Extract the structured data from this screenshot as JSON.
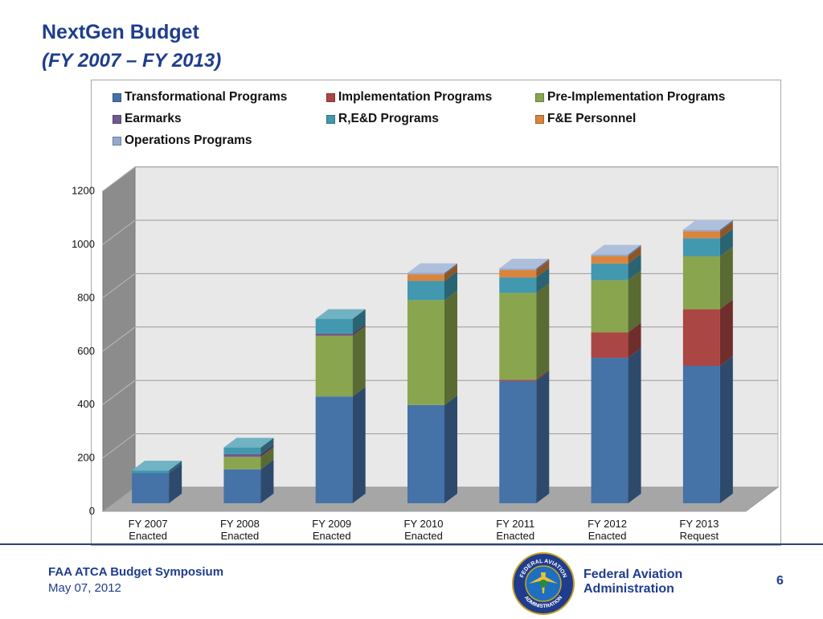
{
  "slide": {
    "title": "NextGen Budget",
    "subtitle": "(FY 2007 – FY 2013)",
    "footer_title": "FAA ATCA Budget Symposium",
    "footer_date": "May 07, 2012",
    "agency_line1": "Federal Aviation",
    "agency_line2": "Administration",
    "page_number": "6",
    "seal_text_top": "FEDERAL AVIATION",
    "seal_text_bottom": "ADMINISTRATION"
  },
  "chart_data": {
    "type": "bar",
    "stacked": true,
    "three_d": true,
    "categories": [
      "FY 2007\nEnacted",
      "FY 2008\nEnacted",
      "FY 2009\nEnacted",
      "FY 2010\nEnacted",
      "FY 2011\nEnacted",
      "FY 2012\nEnacted",
      "FY 2013\nRequest"
    ],
    "category_lines": [
      [
        "FY 2007",
        "Enacted"
      ],
      [
        "FY 2008",
        "Enacted"
      ],
      [
        "FY 2009",
        "Enacted"
      ],
      [
        "FY 2010",
        "Enacted"
      ],
      [
        "FY 2011",
        "Enacted"
      ],
      [
        "FY 2012",
        "Enacted"
      ],
      [
        "FY 2013",
        "Request"
      ]
    ],
    "series": [
      {
        "name": "Transformational Programs",
        "color": "#4572a7",
        "values": [
          113,
          127,
          400,
          368,
          458,
          545,
          515
        ]
      },
      {
        "name": "Implementation Programs",
        "color": "#aa4643",
        "values": [
          0,
          0,
          0,
          0,
          5,
          95,
          212
        ]
      },
      {
        "name": "Pre-Implementation Programs",
        "color": "#89a54e",
        "values": [
          0,
          47,
          228,
          393,
          325,
          196,
          198
        ]
      },
      {
        "name": "Earmarks",
        "color": "#71588f",
        "values": [
          0,
          10,
          8,
          0,
          0,
          0,
          0
        ]
      },
      {
        "name": "R,E&D Programs",
        "color": "#4198af",
        "values": [
          10,
          25,
          55,
          72,
          58,
          62,
          68
        ]
      },
      {
        "name": "F&E Personnel",
        "color": "#db843d",
        "values": [
          0,
          0,
          0,
          25,
          28,
          28,
          26
        ]
      },
      {
        "name": "Operations Programs",
        "color": "#93a9cf",
        "values": [
          0,
          0,
          0,
          5,
          6,
          6,
          6
        ]
      }
    ],
    "ylim": [
      0,
      1200
    ],
    "yticks": [
      0,
      200,
      400,
      600,
      800,
      1000,
      1200
    ],
    "grid": true,
    "legend_position": "top"
  }
}
